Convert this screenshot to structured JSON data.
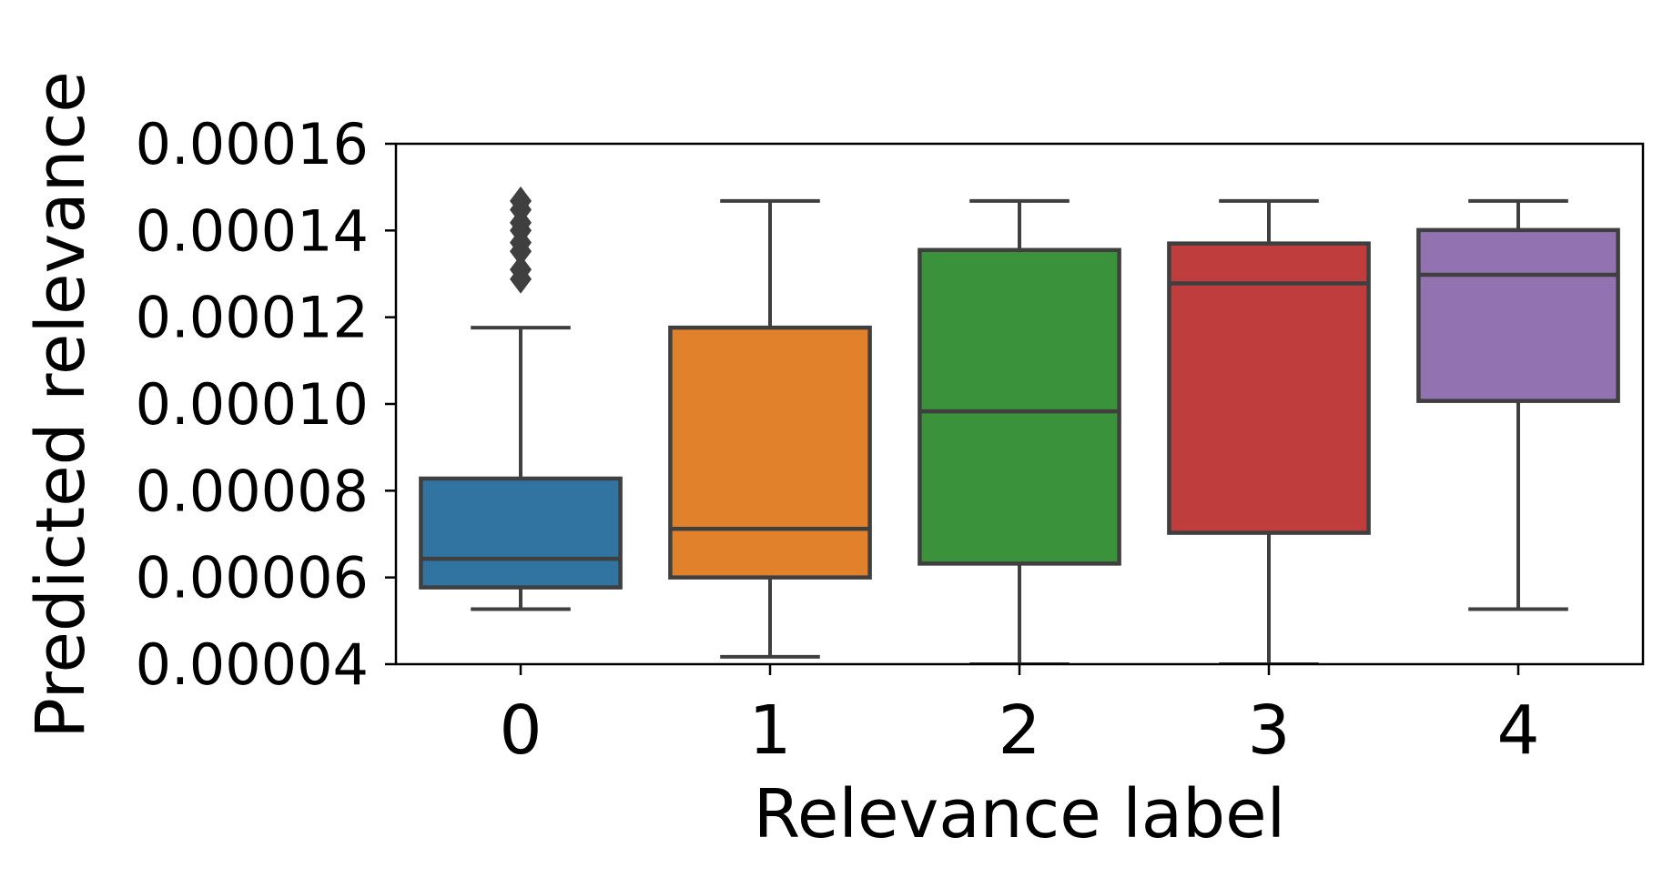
{
  "chart_data": {
    "type": "box",
    "xlabel": "Relevance label",
    "ylabel": "Predicted relevance",
    "ylim": [
      4e-05,
      0.00016
    ],
    "yticks": [
      "0.00004",
      "0.00006",
      "0.00008",
      "0.00010",
      "0.00012",
      "0.00014",
      "0.00016"
    ],
    "ytick_values": [
      4e-05,
      6e-05,
      8e-05,
      0.0001,
      0.00012,
      0.00014,
      0.00016
    ],
    "categories": [
      "0",
      "1",
      "2",
      "3",
      "4"
    ],
    "boxes": [
      {
        "category": "0",
        "color": "#3274a1",
        "whisker_low": 5.27e-05,
        "q1": 5.77e-05,
        "median": 6.43e-05,
        "q3": 8.28e-05,
        "whisker_high": 0.0001176,
        "outliers": [
          0.0001288,
          0.000131,
          0.0001352,
          0.0001372,
          0.00014,
          0.0001418,
          0.0001448,
          0.0001468
        ]
      },
      {
        "category": "1",
        "color": "#e1812c",
        "whisker_low": 4.17e-05,
        "q1": 6e-05,
        "median": 7.12e-05,
        "q3": 0.0001176,
        "whisker_high": 0.0001468,
        "outliers": []
      },
      {
        "category": "2",
        "color": "#3a923a",
        "whisker_low": 4e-05,
        "q1": 6.32e-05,
        "median": 9.83e-05,
        "q3": 0.0001355,
        "whisker_high": 0.0001468,
        "outliers": []
      },
      {
        "category": "3",
        "color": "#c03d3e",
        "whisker_low": 4e-05,
        "q1": 7.03e-05,
        "median": 0.0001278,
        "q3": 0.000137,
        "whisker_high": 0.0001468,
        "outliers": []
      },
      {
        "category": "4",
        "color": "#9372b2",
        "whisker_low": 5.27e-05,
        "q1": 0.0001007,
        "median": 0.0001298,
        "q3": 0.0001401,
        "whisker_high": 0.0001468,
        "outliers": []
      }
    ],
    "grid": false,
    "legend": "none"
  }
}
